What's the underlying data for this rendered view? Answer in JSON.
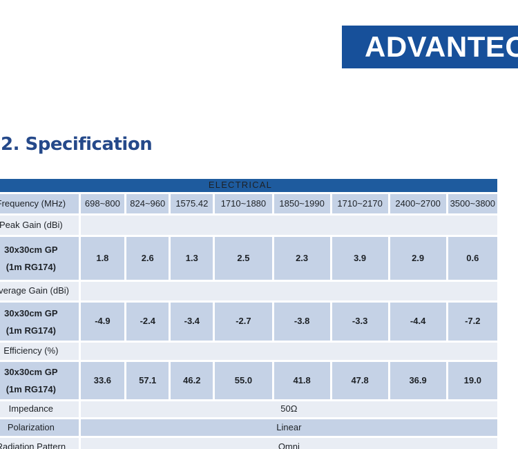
{
  "logo": {
    "text": "ADVANTECH"
  },
  "heading": {
    "text": "2. Specification"
  },
  "colors": {
    "logo_bg": "#17509A",
    "header_bg": "#1E5B9E",
    "band_blue": "#C5D2E6",
    "band_light": "#E9EDF4",
    "heading_text": "#25498A",
    "table_text": "#1D2126",
    "header_text": "#FFFFFF"
  },
  "table": {
    "title": "ELECTRICAL",
    "row_header": {
      "label": "Frequency (MHz)",
      "values": [
        "698~800",
        "824~960",
        "1575.42",
        "1710~1880",
        "1850~1990",
        "1710~2170",
        "2400~2700",
        "3500~3800"
      ]
    },
    "rows": [
      {
        "kind": "section",
        "label": "Peak Gain (dBi)"
      },
      {
        "kind": "data",
        "label_lines": [
          "30x30cm GP",
          "(1m RG174)"
        ],
        "values": [
          "1.8",
          "2.6",
          "1.3",
          "2.5",
          "2.3",
          "3.9",
          "2.9",
          "0.6"
        ]
      },
      {
        "kind": "section",
        "label": "Average Gain (dBi)"
      },
      {
        "kind": "data",
        "label_lines": [
          "30x30cm GP",
          "(1m RG174)"
        ],
        "values": [
          "-4.9",
          "-2.4",
          "-3.4",
          "-2.7",
          "-3.8",
          "-3.3",
          "-4.4",
          "-7.2"
        ]
      },
      {
        "kind": "section",
        "label": "Efficiency (%)"
      },
      {
        "kind": "data",
        "label_lines": [
          "30x30cm GP",
          "(1m RG174)"
        ],
        "values": [
          "33.6",
          "57.1",
          "46.2",
          "55.0",
          "41.8",
          "47.8",
          "36.9",
          "19.0"
        ]
      },
      {
        "kind": "merged",
        "label": "Impedance",
        "value": "50Ω"
      },
      {
        "kind": "merged",
        "label": "Polarization",
        "value": "Linear"
      },
      {
        "kind": "merged",
        "label": "Radiation Pattern",
        "value": "Omni"
      }
    ]
  }
}
